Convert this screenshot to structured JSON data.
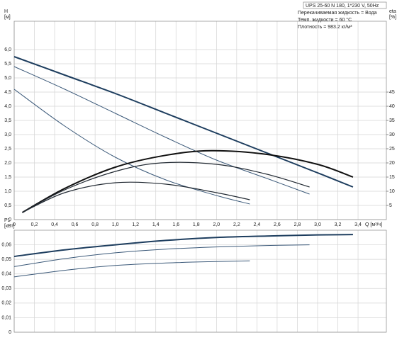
{
  "chart_data": [
    {
      "type": "line",
      "ylabel": "H",
      "yunit": "[м]",
      "y2label": "eta",
      "y2unit": "[%]",
      "xlabel": "Q [м³/ч]",
      "info": [
        "UPS 25-60 N 180, 1*230 V, 50Hz",
        "Перекачиваемая жидкость = Вода",
        "Темп. жидкости = 60 °C",
        "Плотность = 983.2 кг/м³"
      ],
      "xlim": [
        0,
        3.68
      ],
      "ylim": [
        0,
        7
      ],
      "y2lim": [
        0,
        70
      ],
      "grid": true,
      "xticks": [
        0,
        {
          "value": 0.2,
          "label": "0,2"
        },
        {
          "value": 0.4,
          "label": "0,4"
        },
        {
          "value": 0.6,
          "label": "0,6"
        },
        {
          "value": 0.8,
          "label": "0,8"
        },
        {
          "value": 1,
          "label": "1,0"
        },
        {
          "value": 1.2,
          "label": "1,2"
        },
        {
          "value": 1.4,
          "label": "1,4"
        },
        {
          "value": 1.6,
          "label": "1,6"
        },
        {
          "value": 1.8,
          "label": "1,8"
        },
        {
          "value": 2,
          "label": "2,0"
        },
        {
          "value": 2.2,
          "label": "2,2"
        },
        {
          "value": 2.4,
          "label": "2,4"
        },
        {
          "value": 2.6,
          "label": "2,6"
        },
        {
          "value": 2.8,
          "label": "2,8"
        },
        {
          "value": 3,
          "label": "3,0"
        },
        {
          "value": 3.2,
          "label": "3,2"
        },
        {
          "value": 3.4,
          "label": "3,4"
        }
      ],
      "yticks": [
        0,
        {
          "value": 0.5,
          "label": "0,5"
        },
        {
          "value": 1,
          "label": "1,0"
        },
        {
          "value": 1.5,
          "label": "1,5"
        },
        {
          "value": 2,
          "label": "2,0"
        },
        {
          "value": 2.5,
          "label": "2,5"
        },
        {
          "value": 3,
          "label": "3,0"
        },
        {
          "value": 3.5,
          "label": "3,5"
        },
        {
          "value": 4,
          "label": "4,0"
        },
        {
          "value": 4.5,
          "label": "4,5"
        },
        {
          "value": 5,
          "label": "5,0"
        },
        {
          "value": 5.5,
          "label": "5,5"
        },
        {
          "value": 6,
          "label": "6,0"
        }
      ],
      "y2ticks": [
        5,
        10,
        15,
        20,
        25,
        30,
        35,
        40,
        45
      ],
      "series": [
        {
          "color": "#1d3d5e",
          "width": 2,
          "x": [
            0,
            0.5,
            1,
            1.5,
            2,
            2.5,
            3,
            3.35
          ],
          "values": [
            5.75,
            5.1,
            4.45,
            3.75,
            3.05,
            2.35,
            1.65,
            1.15
          ]
        },
        {
          "color": "#3a5878",
          "width": 1,
          "x": [
            0,
            0.5,
            1,
            1.5,
            2,
            2.5,
            2.92
          ],
          "values": [
            5.4,
            4.6,
            3.75,
            2.9,
            2.1,
            1.45,
            0.9
          ]
        },
        {
          "color": "#3a5878",
          "width": 1,
          "x": [
            0,
            0.5,
            1,
            1.5,
            2,
            2.33
          ],
          "values": [
            4.6,
            3.3,
            2.2,
            1.4,
            0.85,
            0.55
          ]
        },
        {
          "color": "#111111",
          "width": 2,
          "axis": "y2",
          "x": [
            0.08,
            0.5,
            1,
            1.5,
            1.95,
            2.5,
            3,
            3.35
          ],
          "values": [
            2.5,
            11,
            18.5,
            22.7,
            24.3,
            23,
            19.5,
            15
          ]
        },
        {
          "color": "#222a33",
          "width": 1.2,
          "axis": "y2",
          "x": [
            0.08,
            0.5,
            1,
            1.45,
            2,
            2.5,
            2.92
          ],
          "values": [
            2.5,
            10.5,
            17,
            20,
            19.5,
            16,
            11.5
          ]
        },
        {
          "color": "#222a33",
          "width": 1.2,
          "axis": "y2",
          "x": [
            0.08,
            0.5,
            1,
            1.5,
            2,
            2.33
          ],
          "values": [
            2.5,
            9.5,
            13,
            12.5,
            9.5,
            7
          ]
        }
      ]
    },
    {
      "type": "line",
      "ylabel": "P1",
      "yunit": "[кВт]",
      "xlim": [
        0,
        3.68
      ],
      "ylim": [
        0,
        0.07
      ],
      "grid": true,
      "xticks": [
        0,
        0.2,
        0.4,
        0.6,
        0.8,
        1,
        1.2,
        1.4,
        1.6,
        1.8,
        2,
        2.2,
        2.4,
        2.6,
        2.8,
        3,
        3.2,
        3.4
      ],
      "yticks": [
        0,
        {
          "value": 0.01,
          "label": "0,01"
        },
        {
          "value": 0.02,
          "label": "0,02"
        },
        {
          "value": 0.03,
          "label": "0,03"
        },
        {
          "value": 0.04,
          "label": "0,04"
        },
        {
          "value": 0.05,
          "label": "0,05"
        },
        {
          "value": 0.06,
          "label": "0,06"
        }
      ],
      "series": [
        {
          "color": "#1d3d5e",
          "width": 2,
          "x": [
            0,
            0.5,
            1,
            1.5,
            2,
            2.5,
            3,
            3.35
          ],
          "values": [
            0.052,
            0.0565,
            0.06,
            0.063,
            0.065,
            0.066,
            0.0668,
            0.067
          ]
        },
        {
          "color": "#3a5878",
          "width": 1,
          "x": [
            0,
            0.5,
            1,
            1.5,
            2,
            2.5,
            2.92
          ],
          "values": [
            0.045,
            0.0505,
            0.0545,
            0.057,
            0.0585,
            0.0595,
            0.06
          ]
        },
        {
          "color": "#3a5878",
          "width": 1,
          "x": [
            0,
            0.5,
            1,
            1.5,
            2,
            2.33
          ],
          "values": [
            0.038,
            0.0425,
            0.0458,
            0.0475,
            0.0485,
            0.049
          ]
        }
      ]
    }
  ]
}
